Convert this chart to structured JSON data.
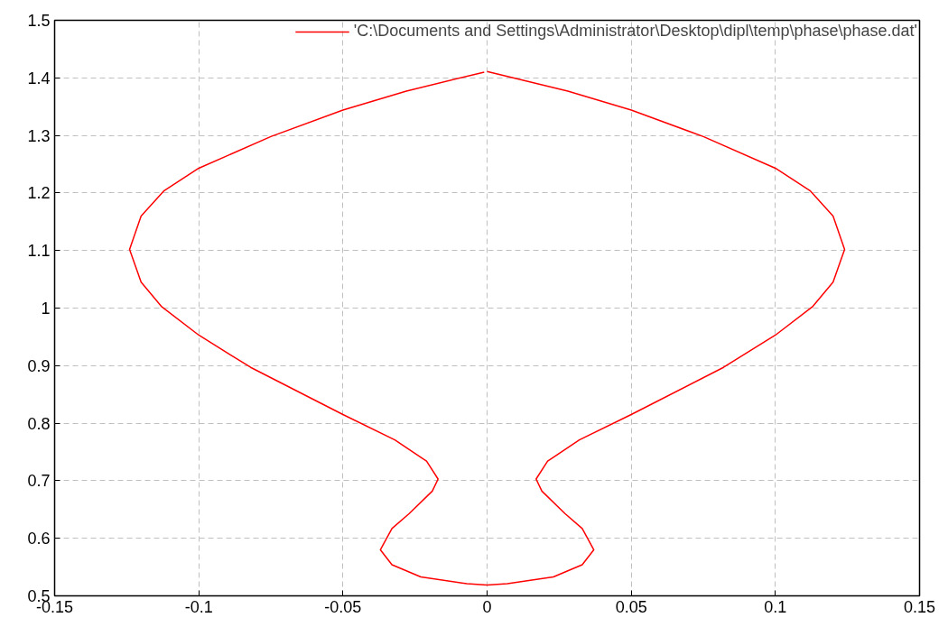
{
  "chart_data": {
    "type": "line",
    "xlim": [
      -0.15,
      0.15
    ],
    "ylim": [
      0.5,
      1.5
    ],
    "xticks": [
      -0.15,
      -0.1,
      -0.05,
      0,
      0.05,
      0.1,
      0.15
    ],
    "yticks": [
      0.5,
      0.6,
      0.7,
      0.8,
      0.9,
      1,
      1.1,
      1.2,
      1.3,
      1.4,
      1.5
    ],
    "grid": true,
    "legend": "top right",
    "line_style": "solid",
    "series": [
      {
        "name": "'C:\\Documents and Settings\\Administrator\\Desktop\\dipl\\temp\\phase\\phase.dat'",
        "color": "#ff0000",
        "x": [
          0,
          0.028,
          0.05,
          0.075,
          0.1,
          0.112,
          0.12,
          0.124,
          0.12,
          0.113,
          0.1,
          0.082,
          0.05,
          0.032,
          0.021,
          0.017,
          0.019,
          0.027,
          0.033,
          0.037,
          0.033,
          0.023,
          0.007,
          0,
          -0.007,
          -0.023,
          -0.033,
          -0.037,
          -0.033,
          -0.027,
          -0.019,
          -0.017,
          -0.021,
          -0.032,
          -0.05,
          -0.082,
          -0.1,
          -0.113,
          -0.12,
          -0.124,
          -0.12,
          -0.112,
          -0.1,
          -0.075,
          -0.05,
          -0.028,
          -0.001
        ],
        "values": [
          1.411,
          1.377,
          1.344,
          1.298,
          1.243,
          1.204,
          1.16,
          1.102,
          1.045,
          1.003,
          0.953,
          0.897,
          0.815,
          0.771,
          0.734,
          0.703,
          0.682,
          0.643,
          0.617,
          0.58,
          0.554,
          0.533,
          0.521,
          0.519,
          0.521,
          0.533,
          0.554,
          0.58,
          0.617,
          0.643,
          0.682,
          0.703,
          0.734,
          0.771,
          0.815,
          0.897,
          0.953,
          1.003,
          1.045,
          1.102,
          1.16,
          1.204,
          1.243,
          1.298,
          1.344,
          1.377,
          1.41
        ]
      }
    ]
  }
}
